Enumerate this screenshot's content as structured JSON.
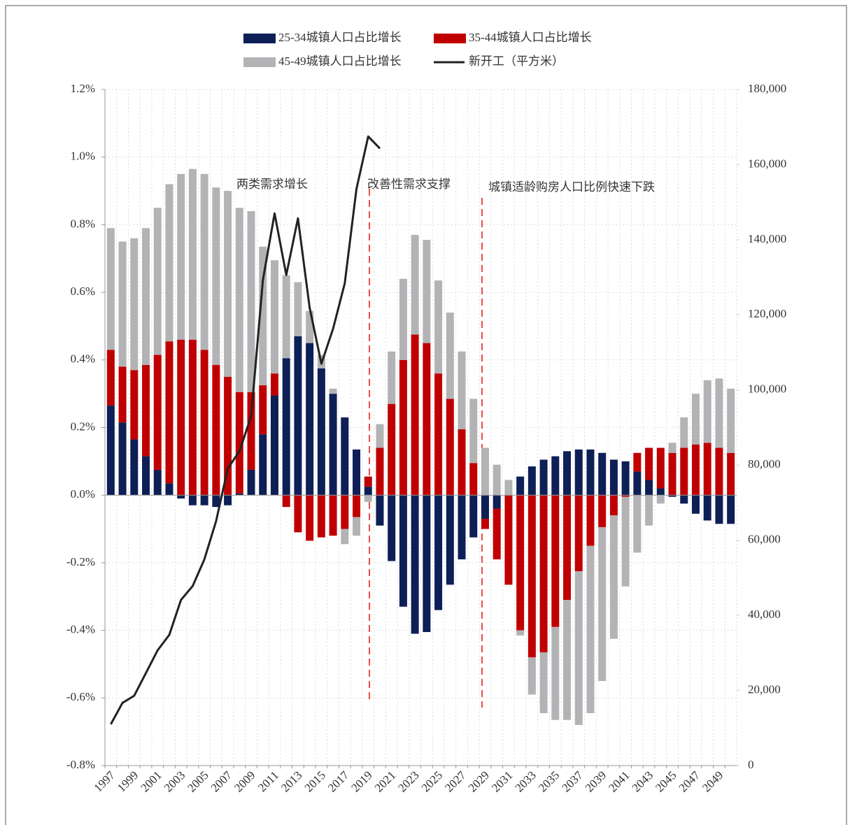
{
  "chart_data": {
    "type": "bar",
    "stacked": true,
    "categories": [
      "1997",
      null,
      "1999",
      null,
      "2001",
      null,
      "2003",
      null,
      "2005",
      null,
      "2007",
      null,
      "2009",
      null,
      "2011",
      null,
      "2013",
      null,
      "2015",
      null,
      "2017",
      null,
      "2019",
      null,
      "2021",
      null,
      "2023",
      null,
      "2025",
      null,
      "2027",
      null,
      "2029",
      null,
      "2031",
      null,
      "2033",
      null,
      "2035",
      null,
      "2037",
      null,
      "2039",
      null,
      "2041",
      null,
      "2043",
      null,
      "2045",
      null,
      "2047",
      null,
      "2049",
      null
    ],
    "series": [
      {
        "name": "25-34城镇人口占比增长",
        "color": "#0d1f56",
        "values": [
          0.265,
          0.215,
          0.165,
          0.115,
          0.075,
          0.035,
          -0.01,
          -0.03,
          -0.03,
          -0.035,
          -0.03,
          0.005,
          0.075,
          0.18,
          0.295,
          0.405,
          0.47,
          0.45,
          0.375,
          0.3,
          0.23,
          0.135,
          0.025,
          -0.09,
          -0.195,
          -0.33,
          -0.41,
          -0.405,
          -0.34,
          -0.265,
          -0.19,
          -0.125,
          -0.07,
          -0.04,
          0.0,
          0.055,
          0.085,
          0.105,
          0.115,
          0.13,
          0.135,
          0.135,
          0.125,
          0.105,
          0.1,
          0.07,
          0.045,
          0.02,
          -0.005,
          -0.025,
          -0.055,
          -0.075,
          -0.085,
          -0.085
        ]
      },
      {
        "name": "35-44城镇人口占比增长",
        "color": "#c00000",
        "values": [
          0.165,
          0.165,
          0.205,
          0.27,
          0.34,
          0.42,
          0.46,
          0.46,
          0.43,
          0.385,
          0.35,
          0.3,
          0.23,
          0.145,
          0.065,
          -0.035,
          -0.11,
          -0.135,
          -0.125,
          -0.12,
          -0.1,
          -0.065,
          0.03,
          0.14,
          0.27,
          0.4,
          0.475,
          0.45,
          0.36,
          0.285,
          0.195,
          0.095,
          -0.03,
          -0.15,
          -0.265,
          -0.4,
          -0.48,
          -0.465,
          -0.39,
          -0.31,
          -0.225,
          -0.15,
          -0.095,
          -0.06,
          -0.005,
          0.055,
          0.095,
          0.12,
          0.125,
          0.14,
          0.15,
          0.155,
          0.14,
          0.125
        ]
      },
      {
        "name": "45-49城镇人口占比增长",
        "color": "#b3b3b6",
        "values": [
          0.36,
          0.37,
          0.39,
          0.405,
          0.435,
          0.465,
          0.49,
          0.505,
          0.52,
          0.525,
          0.55,
          0.545,
          0.535,
          0.41,
          0.335,
          0.245,
          0.16,
          0.095,
          0.04,
          0.015,
          -0.045,
          -0.055,
          -0.02,
          0.07,
          0.155,
          0.24,
          0.295,
          0.305,
          0.275,
          0.255,
          0.23,
          0.19,
          0.14,
          0.09,
          0.045,
          -0.015,
          -0.11,
          -0.18,
          -0.275,
          -0.355,
          -0.455,
          -0.495,
          -0.455,
          -0.365,
          -0.265,
          -0.17,
          -0.09,
          -0.025,
          0.03,
          0.09,
          0.15,
          0.185,
          0.205,
          0.19
        ]
      },
      {
        "name": "新开工（平方米）",
        "color": "#222222",
        "type": "line",
        "axis": "y2",
        "values": [
          11000,
          16700,
          18600,
          24600,
          30700,
          34800,
          44100,
          47800,
          54900,
          65100,
          79100,
          83700,
          93000,
          129300,
          147000,
          130600,
          145700,
          121900,
          107000,
          116300,
          128400,
          153500,
          167500,
          164300,
          null,
          null,
          null,
          null,
          null,
          null,
          null,
          null,
          null,
          null,
          null,
          null,
          null,
          null,
          null,
          null,
          null,
          null,
          null,
          null,
          null,
          null,
          null,
          null,
          null,
          null,
          null,
          null,
          null,
          null
        ]
      }
    ],
    "ylim": [
      -0.8,
      1.2
    ],
    "yticks": [
      {
        "value": 1.2,
        "label": "1.2%"
      },
      {
        "value": 1.0,
        "label": "1.0%"
      },
      {
        "value": 0.8,
        "label": "0.8%"
      },
      {
        "value": 0.6,
        "label": "0.6%"
      },
      {
        "value": 0.4,
        "label": "0.4%"
      },
      {
        "value": 0.2,
        "label": "0.2%"
      },
      {
        "value": 0,
        "label": "0.0%"
      },
      {
        "value": -0.2,
        "label": "-0.2%"
      },
      {
        "value": -0.4,
        "label": "-0.4%"
      },
      {
        "value": -0.6,
        "label": "-0.6%"
      },
      {
        "value": -0.8,
        "label": "-0.8%"
      }
    ],
    "y2lim": [
      0,
      180000
    ],
    "y2ticks": [
      {
        "value": 180000,
        "label": "180,000"
      },
      {
        "value": 160000,
        "label": "160,000"
      },
      {
        "value": 140000,
        "label": "140,000"
      },
      {
        "value": 120000,
        "label": "120,000"
      },
      {
        "value": 100000,
        "label": "100,000"
      },
      {
        "value": 80000,
        "label": "80,000"
      },
      {
        "value": 60000,
        "label": "60,000"
      },
      {
        "value": 40000,
        "label": "40,000"
      },
      {
        "value": 20000,
        "label": "20,000"
      },
      0
    ],
    "annotations": [
      "两类需求增长",
      "改善性需求支撑",
      "城镇适龄购房人口比例快速下跌"
    ],
    "grid": true,
    "legend": "top"
  }
}
